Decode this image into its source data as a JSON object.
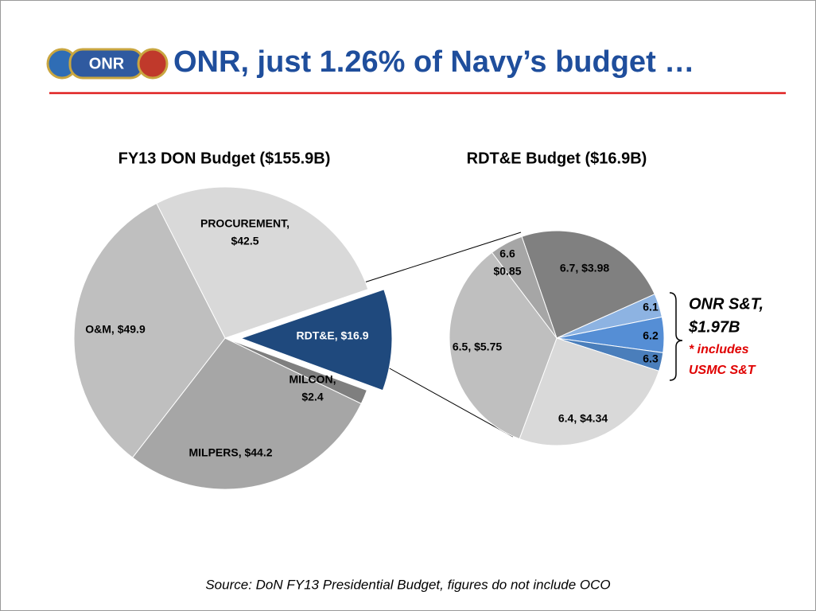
{
  "header": {
    "title": "ONR, just 1.26% of Navy’s budget …"
  },
  "chart_data": [
    {
      "type": "pie",
      "title": "FY13 DON Budget ($155.9B)",
      "categories": [
        "PROCUREMENT",
        "RDT&E",
        "MILCON",
        "MILPERS",
        "O&M"
      ],
      "values": [
        42.5,
        16.9,
        2.4,
        44.2,
        49.9
      ],
      "value_labels": [
        [
          "PROCUREMENT,",
          "$42.5"
        ],
        [
          "RDT&E,  $16.9"
        ],
        [
          "MILCON,",
          "$2.4"
        ],
        [
          "MILPERS,  $44.2"
        ],
        [
          "O&M,  $49.9"
        ]
      ],
      "colors": [
        "#d9d9d9",
        "#1f497d",
        "#7f7f7f",
        "#a6a6a6",
        "#bfbfbf"
      ]
    },
    {
      "type": "pie",
      "title": "RDT&E Budget ($16.9B)",
      "categories": [
        "6.7",
        "6.1",
        "6.2",
        "6.3",
        "6.4",
        "6.5",
        "6.6"
      ],
      "values": [
        3.98,
        0.6,
        0.9,
        0.47,
        4.34,
        5.75,
        0.85
      ],
      "value_labels": [
        [
          "6.7,  $3.98"
        ],
        [
          "6.1"
        ],
        [
          "6.2"
        ],
        [
          "6.3"
        ],
        [
          "6.4,  $4.34"
        ],
        [
          "6.5,  $5.75"
        ],
        [
          "6.6",
          "$0.85"
        ]
      ],
      "colors": [
        "#808080",
        "#8db3e2",
        "#558ed5",
        "#4a7ebb",
        "#d9d9d9",
        "#bfbfbf",
        "#a6a6a6"
      ]
    }
  ],
  "annotation": {
    "lines": [
      "ONR S&T,",
      "$1.97B"
    ],
    "note": [
      "* includes",
      "USMC S&T"
    ]
  },
  "source": "Source: DoN FY13 Presidential Budget, figures do not include OCO"
}
